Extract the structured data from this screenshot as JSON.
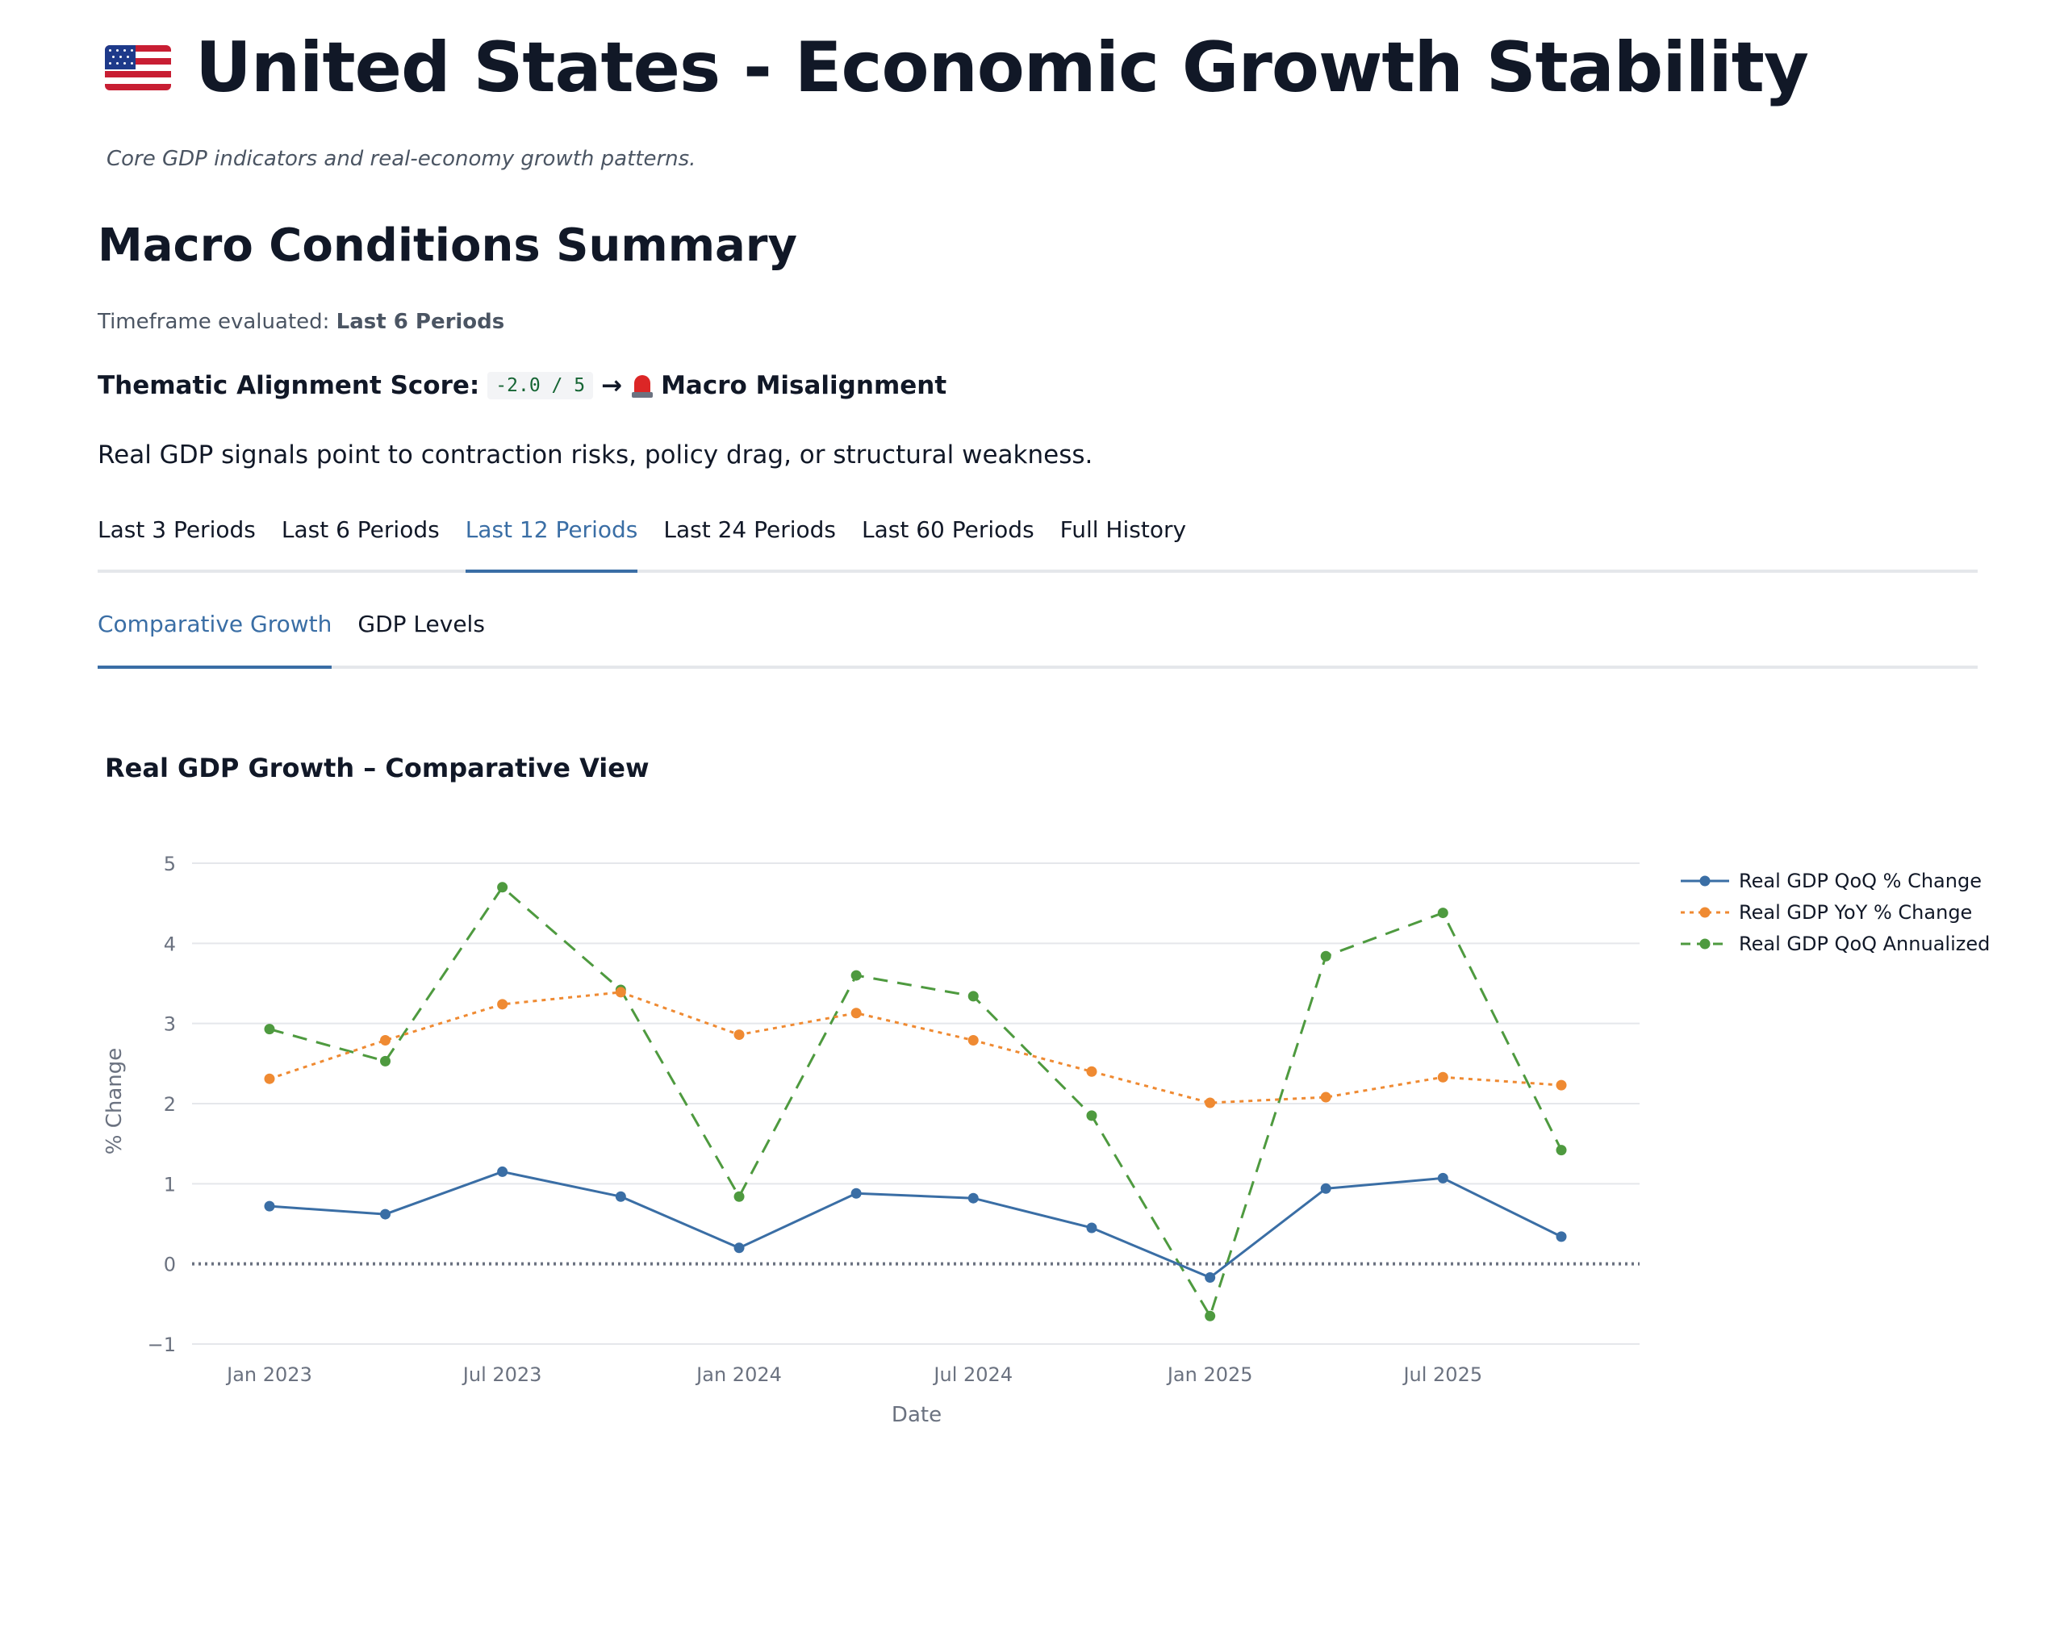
{
  "header": {
    "title": "United States - Economic Growth Stability",
    "flag_icon": "us-flag-icon",
    "subtitle": "Core GDP indicators and real-economy growth patterns."
  },
  "summary": {
    "heading": "Macro Conditions Summary",
    "timeframe_label": "Timeframe evaluated:",
    "timeframe_value": "Last 6 Periods",
    "score_label": "Thematic Alignment Score:",
    "score_value": "-2.0 / 5",
    "arrow": "→",
    "status_icon": "siren-icon",
    "status_text": "Macro Misalignment",
    "status_color": "#dc2626",
    "description": "Real GDP signals point to contraction risks, policy drag, or structural weakness."
  },
  "period_tabs": [
    {
      "label": "Last 3 Periods",
      "active": false
    },
    {
      "label": "Last 6 Periods",
      "active": false
    },
    {
      "label": "Last 12 Periods",
      "active": true
    },
    {
      "label": "Last 24 Periods",
      "active": false
    },
    {
      "label": "Last 60 Periods",
      "active": false
    },
    {
      "label": "Full History",
      "active": false
    }
  ],
  "view_tabs": [
    {
      "label": "Comparative Growth",
      "active": true
    },
    {
      "label": "GDP Levels",
      "active": false
    }
  ],
  "accent_color": "#3a6ea5",
  "chart_data": {
    "type": "line",
    "title": "Real GDP Growth – Comparative View",
    "xlabel": "Date",
    "ylabel": "% Change",
    "x": [
      "2023-01-01",
      "2023-04-01",
      "2023-07-01",
      "2023-10-01",
      "2024-01-01",
      "2024-04-01",
      "2024-07-01",
      "2024-10-01",
      "2025-01-01",
      "2025-04-01",
      "2025-07-01",
      "2025-10-01"
    ],
    "x_tick_labels": [
      "Jan 2023",
      "Jul 2023",
      "Jan 2024",
      "Jul 2024",
      "Jan 2025",
      "Jul 2025"
    ],
    "y_tick_labels": [
      "5",
      "4",
      "3",
      "2",
      "1",
      "0",
      "−1"
    ],
    "ylim": [
      -1,
      5
    ],
    "grid": true,
    "zero_line": true,
    "legend_position": "right",
    "series": [
      {
        "name": "Real GDP QoQ % Change",
        "color": "#3a6ea5",
        "dash": "solid",
        "values": [
          0.72,
          0.62,
          1.15,
          0.84,
          0.2,
          0.88,
          0.82,
          0.45,
          -0.17,
          0.94,
          1.07,
          0.34
        ]
      },
      {
        "name": "Real GDP YoY % Change",
        "color": "#ef8a32",
        "dash": "dot",
        "values": [
          2.31,
          2.79,
          3.24,
          3.39,
          2.86,
          3.13,
          2.79,
          2.4,
          2.01,
          2.08,
          2.33,
          2.23
        ]
      },
      {
        "name": "Real GDP QoQ Annualized",
        "color": "#4e9a3f",
        "dash": "dash",
        "values": [
          2.93,
          2.53,
          4.7,
          3.42,
          0.84,
          3.6,
          3.34,
          1.85,
          -0.65,
          3.84,
          4.38,
          1.42
        ]
      }
    ]
  }
}
